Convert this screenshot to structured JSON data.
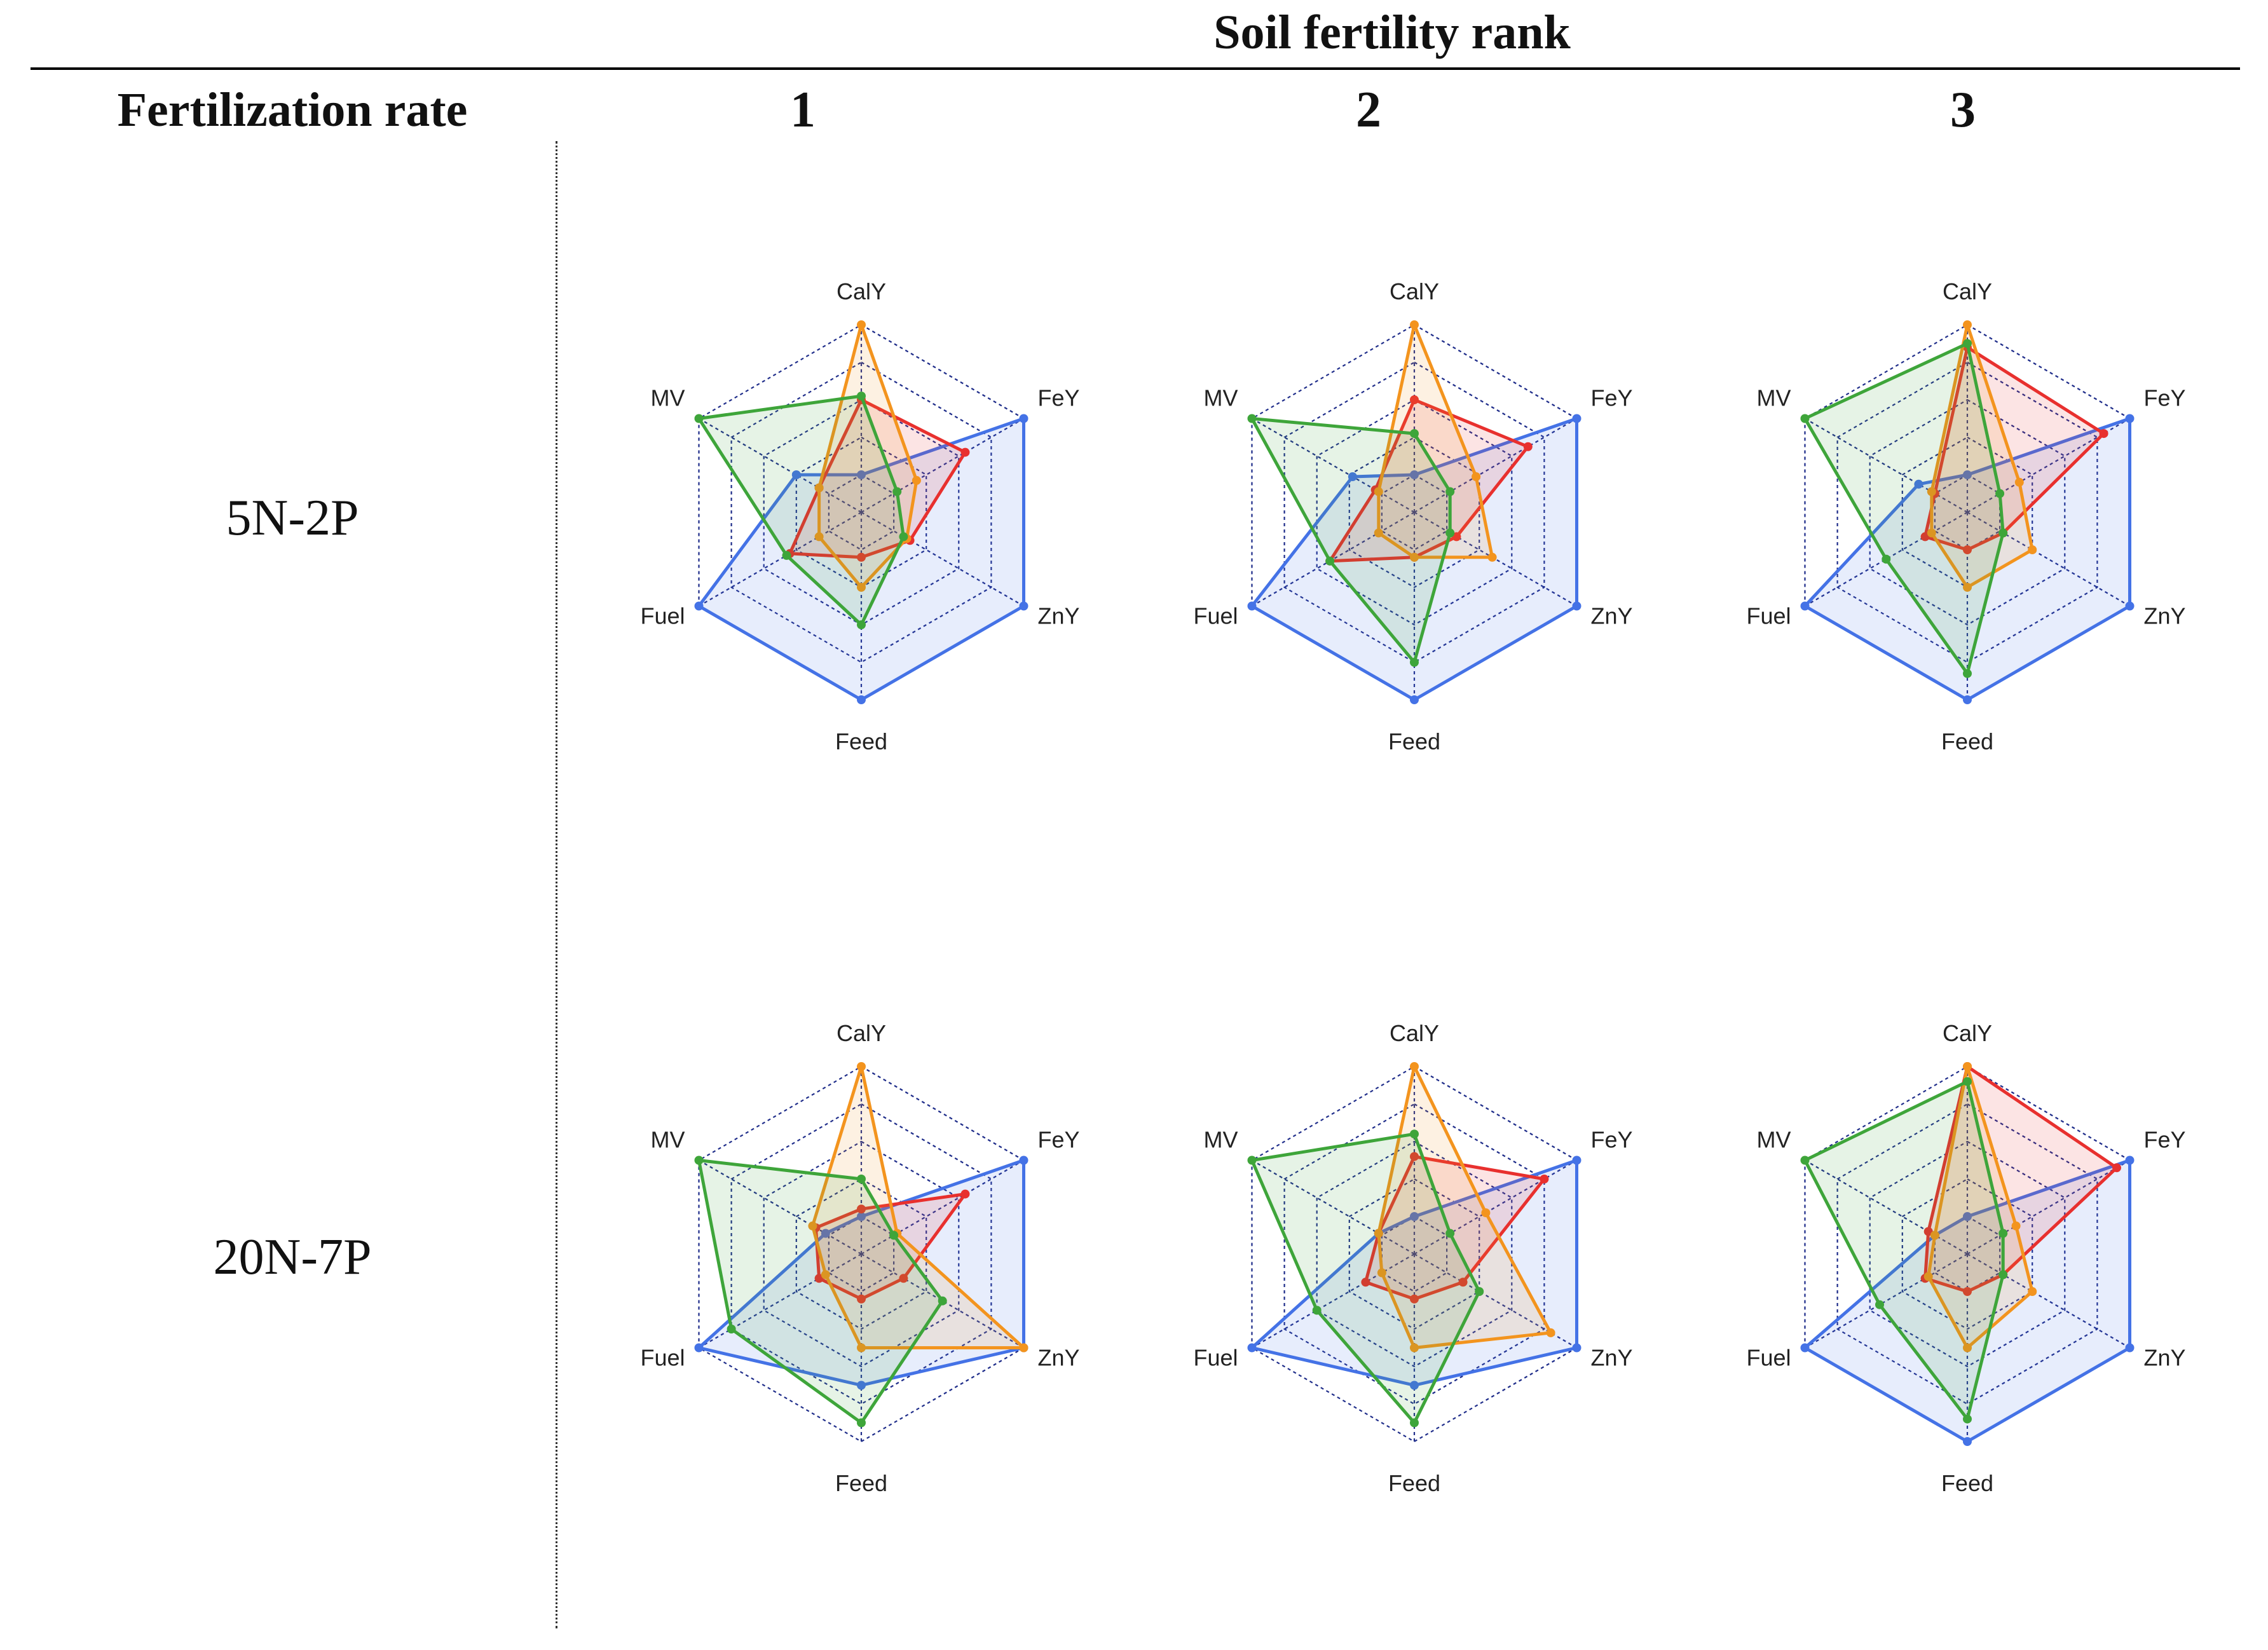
{
  "header": {
    "soil_fertility_rank": "Soil fertility rank",
    "fertilization_rate": "Fertilization rate",
    "ranks": [
      "1",
      "2",
      "3"
    ]
  },
  "rows": [
    "5N-2P",
    "20N-7P"
  ],
  "colors": {
    "blue": "#4472e6",
    "red": "#e8302e",
    "orange": "#f3941e",
    "green": "#3ea53a",
    "grid": "#1f2d8a"
  },
  "chart_data": [
    {
      "type": "radar",
      "title": "5N-2P, rank 1",
      "axes": [
        "CalY",
        "FeY",
        "ZnY",
        "Feed",
        "Fuel",
        "MV"
      ],
      "rlim": [
        0,
        5
      ],
      "series": [
        {
          "name": "blue",
          "color": "#4472e6",
          "values": [
            1.0,
            5.0,
            5.0,
            5.0,
            5.0,
            2.0
          ]
        },
        {
          "name": "red",
          "color": "#e8302e",
          "values": [
            3.0,
            3.2,
            1.5,
            1.2,
            2.2,
            1.3
          ]
        },
        {
          "name": "orange",
          "color": "#f3941e",
          "values": [
            5.0,
            1.7,
            1.4,
            2.0,
            1.3,
            1.3
          ]
        },
        {
          "name": "green",
          "color": "#3ea53a",
          "values": [
            3.1,
            1.1,
            1.3,
            3.0,
            2.3,
            5.0
          ]
        }
      ]
    },
    {
      "type": "radar",
      "title": "5N-2P, rank 2",
      "axes": [
        "CalY",
        "FeY",
        "ZnY",
        "Feed",
        "Fuel",
        "MV"
      ],
      "rlim": [
        0,
        5
      ],
      "series": [
        {
          "name": "blue",
          "color": "#4472e6",
          "values": [
            1.0,
            5.0,
            5.0,
            5.0,
            5.0,
            1.9
          ]
        },
        {
          "name": "red",
          "color": "#e8302e",
          "values": [
            3.0,
            3.5,
            1.3,
            1.2,
            2.6,
            1.2
          ]
        },
        {
          "name": "orange",
          "color": "#f3941e",
          "values": [
            5.0,
            1.9,
            2.4,
            1.2,
            1.1,
            1.1
          ]
        },
        {
          "name": "green",
          "color": "#3ea53a",
          "values": [
            2.1,
            1.1,
            1.1,
            4.0,
            2.6,
            5.0
          ]
        }
      ]
    },
    {
      "type": "radar",
      "title": "5N-2P, rank 3",
      "axes": [
        "CalY",
        "FeY",
        "ZnY",
        "Feed",
        "Fuel",
        "MV"
      ],
      "rlim": [
        0,
        5
      ],
      "series": [
        {
          "name": "blue",
          "color": "#4472e6",
          "values": [
            1.0,
            5.0,
            5.0,
            5.0,
            5.0,
            1.5
          ]
        },
        {
          "name": "red",
          "color": "#e8302e",
          "values": [
            4.4,
            4.2,
            1.1,
            1.0,
            1.3,
            1.0
          ]
        },
        {
          "name": "orange",
          "color": "#f3941e",
          "values": [
            5.0,
            1.6,
            2.0,
            2.0,
            1.1,
            1.1
          ]
        },
        {
          "name": "green",
          "color": "#3ea53a",
          "values": [
            4.5,
            1.0,
            1.1,
            4.3,
            2.5,
            5.0
          ]
        }
      ]
    },
    {
      "type": "radar",
      "title": "20N-7P, rank 1",
      "axes": [
        "CalY",
        "FeY",
        "ZnY",
        "Feed",
        "Fuel",
        "MV"
      ],
      "rlim": [
        0,
        5
      ],
      "series": [
        {
          "name": "blue",
          "color": "#4472e6",
          "values": [
            1.0,
            5.0,
            5.0,
            3.5,
            5.0,
            1.1
          ]
        },
        {
          "name": "red",
          "color": "#e8302e",
          "values": [
            1.2,
            3.2,
            1.3,
            1.2,
            1.3,
            1.4
          ]
        },
        {
          "name": "orange",
          "color": "#f3941e",
          "values": [
            5.0,
            1.1,
            5.0,
            2.5,
            1.1,
            1.5
          ]
        },
        {
          "name": "green",
          "color": "#3ea53a",
          "values": [
            2.0,
            1.0,
            2.5,
            4.5,
            4.0,
            5.0
          ]
        }
      ]
    },
    {
      "type": "radar",
      "title": "20N-7P, rank 2",
      "axes": [
        "CalY",
        "FeY",
        "ZnY",
        "Feed",
        "Fuel",
        "MV"
      ],
      "rlim": [
        0,
        5
      ],
      "series": [
        {
          "name": "blue",
          "color": "#4472e6",
          "values": [
            1.0,
            5.0,
            5.0,
            3.5,
            5.0,
            1.1
          ]
        },
        {
          "name": "red",
          "color": "#e8302e",
          "values": [
            2.6,
            4.0,
            1.5,
            1.2,
            1.5,
            1.1
          ]
        },
        {
          "name": "orange",
          "color": "#f3941e",
          "values": [
            5.0,
            2.2,
            4.2,
            2.5,
            1.0,
            1.1
          ]
        },
        {
          "name": "green",
          "color": "#3ea53a",
          "values": [
            3.2,
            1.1,
            2.0,
            4.5,
            3.0,
            5.0
          ]
        }
      ]
    },
    {
      "type": "radar",
      "title": "20N-7P, rank 3",
      "axes": [
        "CalY",
        "FeY",
        "ZnY",
        "Feed",
        "Fuel",
        "MV"
      ],
      "rlim": [
        0,
        5
      ],
      "series": [
        {
          "name": "blue",
          "color": "#4472e6",
          "values": [
            1.0,
            5.0,
            5.0,
            5.0,
            5.0,
            1.0
          ]
        },
        {
          "name": "red",
          "color": "#e8302e",
          "values": [
            5.0,
            4.6,
            1.1,
            1.0,
            1.3,
            1.2
          ]
        },
        {
          "name": "orange",
          "color": "#f3941e",
          "values": [
            5.0,
            1.5,
            2.0,
            2.5,
            1.2,
            1.0
          ]
        },
        {
          "name": "green",
          "color": "#3ea53a",
          "values": [
            4.6,
            1.1,
            1.1,
            4.4,
            2.7,
            5.0
          ]
        }
      ]
    }
  ]
}
